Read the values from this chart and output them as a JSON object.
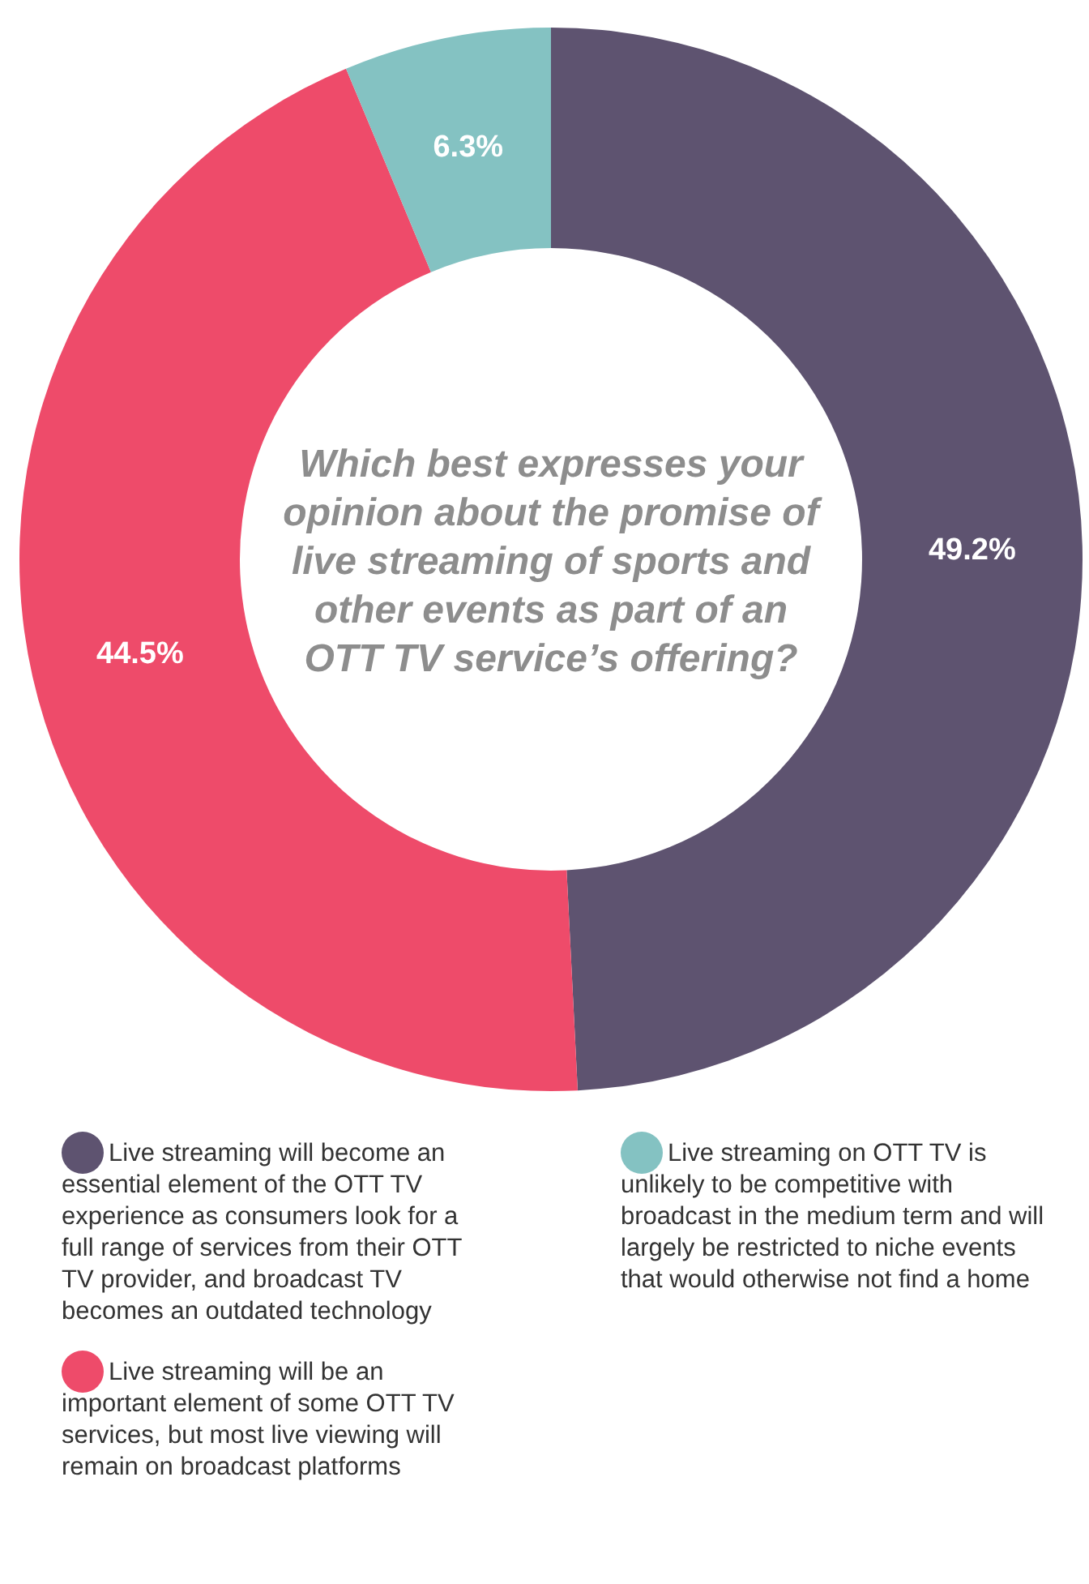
{
  "chart_data": {
    "type": "donut",
    "title": "Which best expresses your opinion about the promise of live streaming of sports and other events as part of an OTT TV service’s offering?",
    "categories": [
      "Live streaming will become an essential element of the OTT TV experience as consumers look for a full range of services from their OTT TV provider, and broadcast TV becomes an outdated technology",
      "Live streaming will be an important element of some OTT TV services, but most live viewing will remain on broadcast platforms",
      "Live streaming on OTT TV is unlikely to be competitive with broadcast in the medium term and will largely be restricted to niche events that would otherwise not find a home"
    ],
    "values": [
      49.2,
      44.5,
      6.3
    ],
    "colors": [
      "#5e5370",
      "#ee4b6a",
      "#84c2c2"
    ],
    "value_labels": [
      "49.2%",
      "44.5%",
      "6.3%"
    ],
    "legend": "bottom"
  }
}
